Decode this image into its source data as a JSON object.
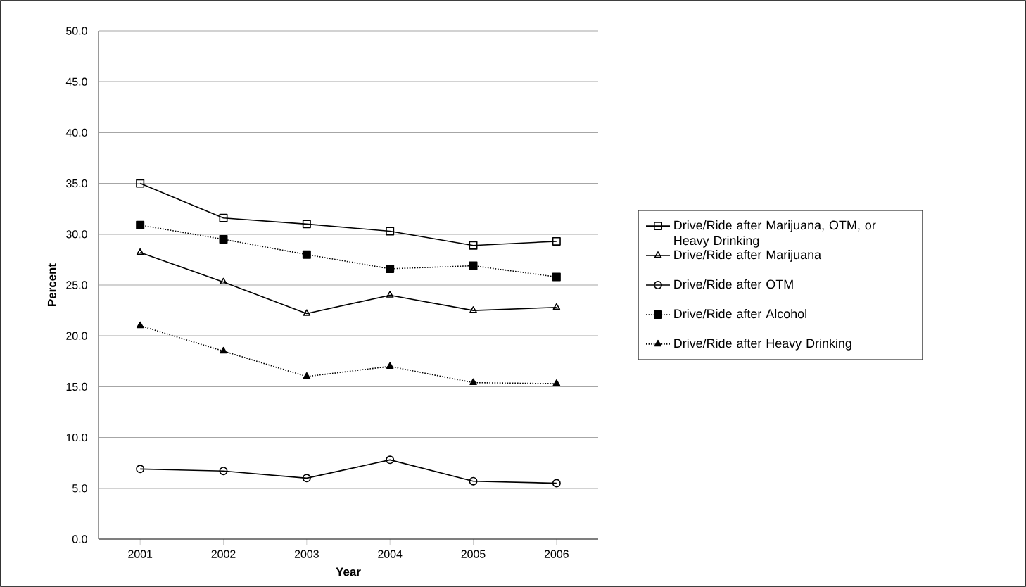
{
  "chart_data": {
    "type": "line",
    "xlabel": "Year",
    "ylabel": "Percent",
    "categories": [
      "2001",
      "2002",
      "2003",
      "2004",
      "2005",
      "2006"
    ],
    "ylim": [
      0,
      50
    ],
    "yticks": [
      {
        "value": 0,
        "label": "0.0"
      },
      {
        "value": 5,
        "label": "5.0"
      },
      {
        "value": 10,
        "label": "10.0"
      },
      {
        "value": 15,
        "label": "15.0"
      },
      {
        "value": 20,
        "label": "20.0"
      },
      {
        "value": 25,
        "label": "25.0"
      },
      {
        "value": 30,
        "label": "30.0"
      },
      {
        "value": 35,
        "label": "35.0"
      },
      {
        "value": 40,
        "label": "40.0"
      },
      {
        "value": 45,
        "label": "45.0"
      },
      {
        "value": 50,
        "label": "50.0"
      }
    ],
    "grid": "y",
    "legend": "right",
    "series": [
      {
        "name": "Drive/Ride after Marijuana, OTM, or Heavy Drinking",
        "color": "#000000",
        "marker": "square",
        "line_style": "solid",
        "values": [
          35.0,
          31.6,
          31.0,
          30.3,
          28.9,
          29.3
        ]
      },
      {
        "name": "Drive/Ride after Marijuana",
        "color": "#000000",
        "marker": "triangle",
        "line_style": "solid",
        "values": [
          28.2,
          25.3,
          22.2,
          24.0,
          22.5,
          22.8
        ]
      },
      {
        "name": "Drive/Ride after OTM",
        "color": "#000000",
        "marker": "circle",
        "line_style": "solid",
        "values": [
          6.9,
          6.7,
          6.0,
          7.8,
          5.7,
          5.5
        ]
      },
      {
        "name": "Drive/Ride after Alcohol",
        "color": "#000000",
        "marker": "square",
        "line_style": "dotted",
        "values": [
          30.9,
          29.5,
          28.0,
          26.6,
          26.9,
          25.8
        ]
      },
      {
        "name": "Drive/Ride after Heavy Drinking",
        "color": "#000000",
        "marker": "triangle",
        "line_style": "dotted",
        "values": [
          21.0,
          18.5,
          16.0,
          17.0,
          15.4,
          15.3
        ]
      }
    ]
  }
}
